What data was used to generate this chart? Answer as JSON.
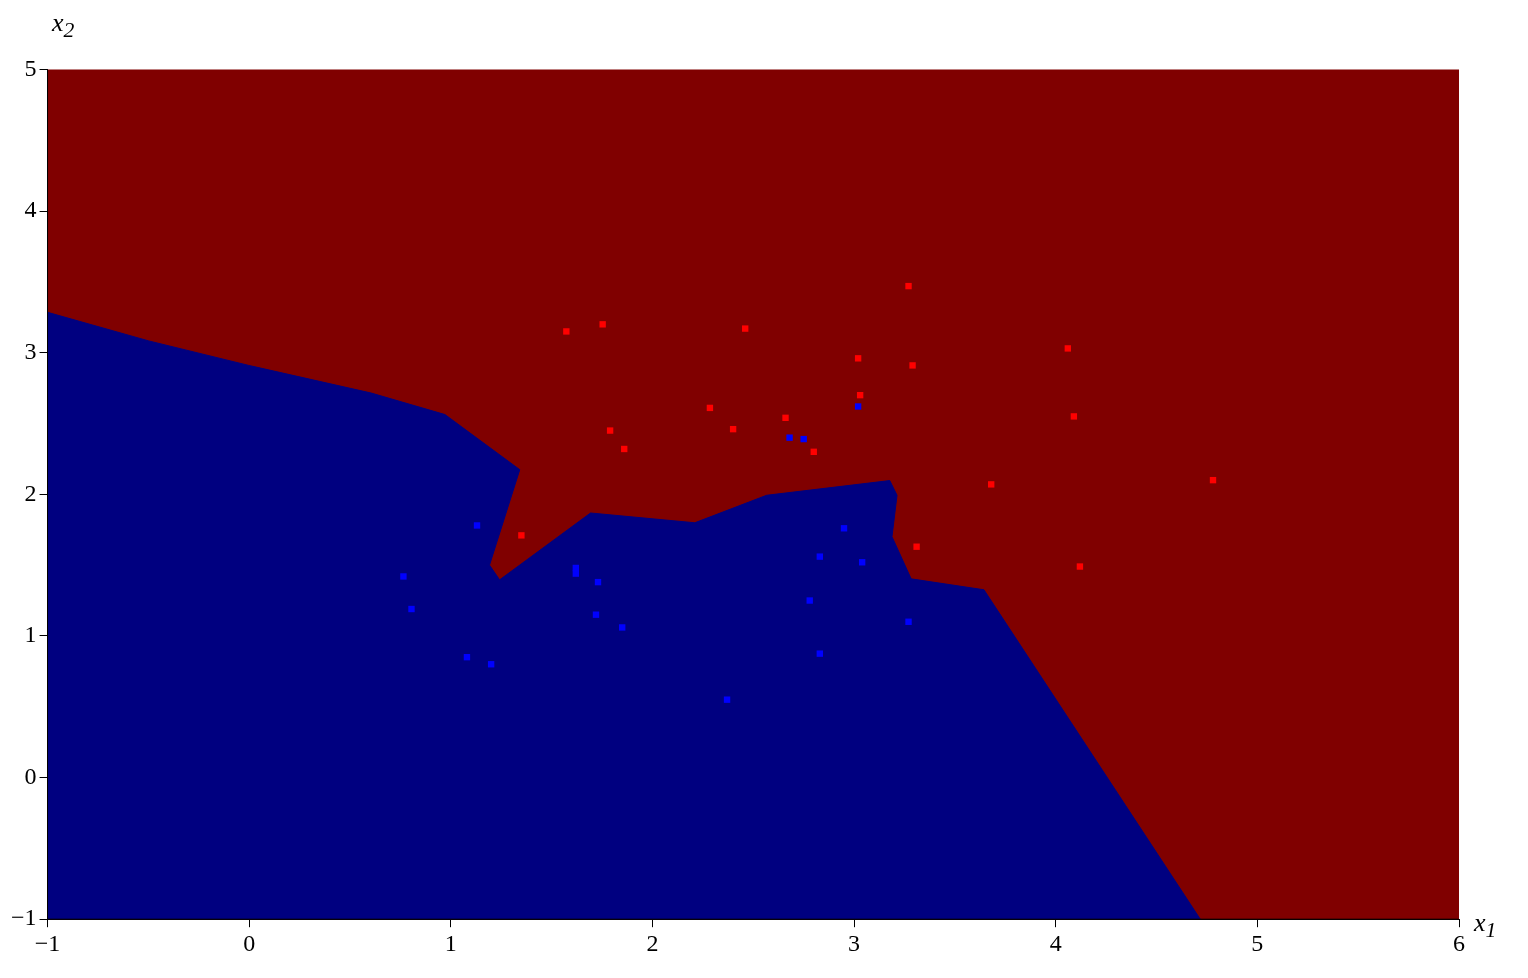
{
  "chart_data": {
    "type": "scatter",
    "xlabel": "x$_{1}$",
    "ylabel": "x$_{2}$",
    "xlim": [
      -1,
      6
    ],
    "ylim": [
      -1,
      5
    ],
    "xticks": [
      {
        "value": -1,
        "label": "−1"
      },
      0,
      1,
      2,
      3,
      4,
      5,
      6
    ],
    "yticks": [
      {
        "value": -1,
        "label": "−1"
      },
      0,
      1,
      2,
      3,
      4,
      5
    ],
    "grid": false,
    "legend": false,
    "marker": "square",
    "bands": [
      {
        "axis": "y",
        "from": -1,
        "to": 5,
        "color": "#800000"
      }
    ],
    "series": [
      {
        "type": "area",
        "marker": "none",
        "color": "#000080",
        "x": [
          -1,
          -0.498,
          -0.002,
          0.605,
          0.971,
          1.342,
          1.192,
          1.242,
          1.693,
          2.21,
          2.566,
          3.177,
          3.213,
          3.188,
          3.283,
          3.644,
          4.717,
          -1
        ],
        "values": [
          3.285,
          3.083,
          2.91,
          2.715,
          2.563,
          2.174,
          1.5,
          1.396,
          1.868,
          1.799,
          1.993,
          2.097,
          1.993,
          1.701,
          1.403,
          1.326,
          -1,
          -1
        ]
      },
      {
        "color": "#ff0000",
        "x": [
          1.573,
          1.753,
          2.46,
          3.27,
          3.02,
          3.29,
          4.06,
          2.285,
          3.03,
          1.79,
          1.86,
          2.4,
          2.66,
          2.8,
          4.09,
          3.68,
          4.78,
          1.35,
          3.31,
          4.12
        ],
        "values": [
          3.15,
          3.2,
          3.17,
          3.47,
          2.96,
          2.91,
          3.03,
          2.61,
          2.7,
          2.45,
          2.32,
          2.46,
          2.54,
          2.3,
          2.55,
          2.07,
          2.1,
          1.71,
          1.63,
          1.49
        ]
      },
      {
        "color": "#0000ff",
        "x": [
          3.02,
          2.68,
          2.75,
          1.13,
          2.95,
          2.83,
          3.04,
          1.62,
          1.62,
          1.73,
          0.765,
          0.805,
          1.72,
          1.85,
          2.78,
          3.27,
          2.83,
          1.08,
          1.2,
          2.37
        ],
        "values": [
          2.62,
          2.4,
          2.39,
          1.78,
          1.76,
          1.56,
          1.52,
          1.48,
          1.44,
          1.38,
          1.42,
          1.19,
          1.15,
          1.06,
          1.25,
          1.1,
          0.875,
          0.85,
          0.8,
          0.55
        ]
      }
    ]
  }
}
